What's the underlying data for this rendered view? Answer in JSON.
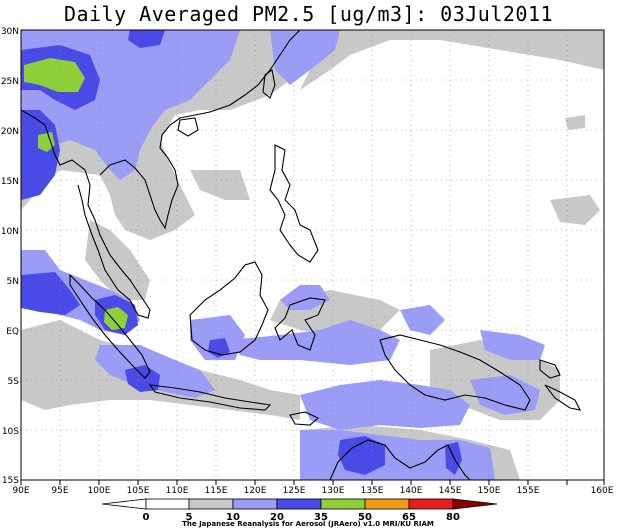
{
  "title": "Daily Averaged PM2.5 [ug/m3]: 03Jul2011",
  "axes": {
    "x_ticks": [
      "90E",
      "95E",
      "100E",
      "105E",
      "110E",
      "115E",
      "120E",
      "125E",
      "130E",
      "135E",
      "140E",
      "145E",
      "150E",
      "155E",
      "160E"
    ],
    "y_ticks": [
      "30N",
      "25N",
      "20N",
      "15N",
      "10N",
      "5N",
      "EQ",
      "5S",
      "10S",
      "15S"
    ]
  },
  "colorbar": {
    "levels": [
      "0",
      "5",
      "10",
      "20",
      "35",
      "50",
      "65",
      "80"
    ],
    "colors": [
      "#ffffff",
      "#ffffff",
      "#c8c8c8",
      "#9a9cf5",
      "#4a4ae6",
      "#8fcf3a",
      "#f09a14",
      "#e61e1e",
      "#8b0000"
    ]
  },
  "credit": "The Japanese Reanalysis for Aerosol (JRAero) v1.0 MRI/KU RIAM"
}
